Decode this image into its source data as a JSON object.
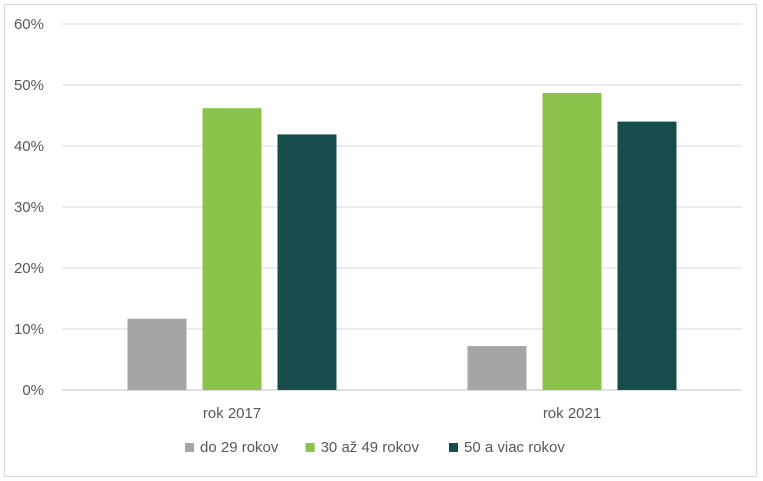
{
  "chart_data": {
    "type": "bar",
    "categories": [
      "rok 2017",
      "rok 2021"
    ],
    "series": [
      {
        "name": "do 29 rokov",
        "color": "#a5a5a5",
        "values": [
          11.7,
          7.2
        ]
      },
      {
        "name": "30 až 49 rokov",
        "color": "#8bc34a",
        "values": [
          46.2,
          48.7
        ]
      },
      {
        "name": "50 a viac rokov",
        "color": "#174c4c",
        "values": [
          41.9,
          44.0
        ]
      }
    ],
    "y_ticks": [
      "0%",
      "10%",
      "20%",
      "30%",
      "40%",
      "50%",
      "60%"
    ],
    "ylim": [
      0,
      60
    ],
    "grid": true,
    "legend_position": "bottom"
  }
}
